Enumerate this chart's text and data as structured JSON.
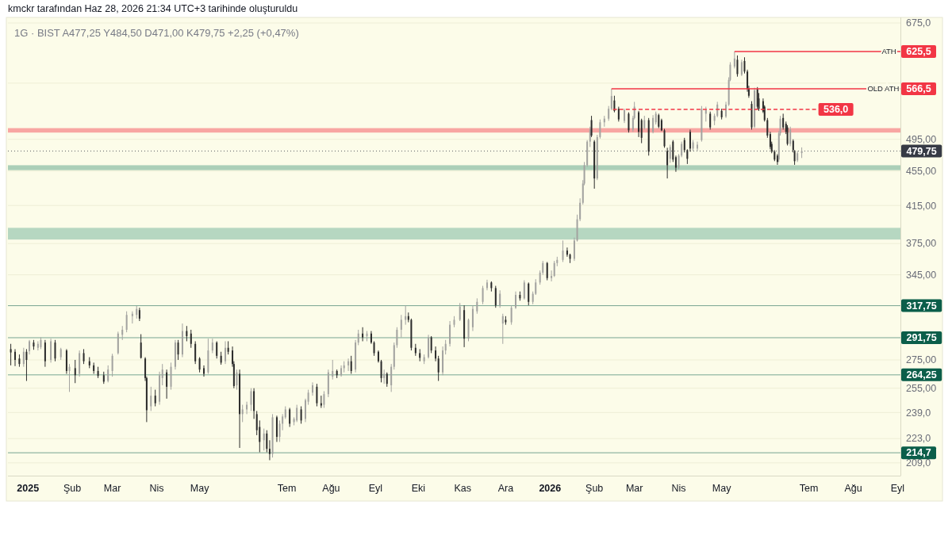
{
  "chart_data": {
    "type": "candlestick",
    "title": "1G · BIST A477,25 Y484,50 D471,00 K479,75 +2,25 (+0,47%)",
    "annotations": [
      "kmckr tarafından Haz 28, 2026 21:34 UTC+3 tarihinde oluşturuldu",
      {
        "text": "ATH",
        "x": "2026-08-26",
        "y": 625.5
      },
      {
        "text": "OLD ATH",
        "x": "2026-08-22",
        "y": 566.5
      }
    ],
    "x": [
      "2024-12-20",
      "2024-12-23",
      "2024-12-26",
      "2024-12-29",
      "2024-12-31",
      "2025-01-02",
      "2025-01-05",
      "2025-01-08",
      "2025-01-10",
      "2025-01-13",
      "2025-01-17",
      "2025-01-20",
      "2025-01-24",
      "2025-01-28",
      "2025-01-30",
      "2025-02-03",
      "2025-02-06",
      "2025-02-09",
      "2025-02-13",
      "2025-02-16",
      "2025-02-19",
      "2025-02-23",
      "2025-02-26",
      "2025-03-01",
      "2025-03-05",
      "2025-03-08",
      "2025-03-11",
      "2025-03-15",
      "2025-03-18",
      "2025-03-20",
      "2025-03-21",
      "2025-03-24",
      "2025-03-25",
      "2025-03-28",
      "2025-03-31",
      "2025-04-03",
      "2025-04-05",
      "2025-04-08",
      "2025-04-11",
      "2025-04-14",
      "2025-04-16",
      "2025-04-19",
      "2025-04-22",
      "2025-04-25",
      "2025-04-28",
      "2025-05-01",
      "2025-05-04",
      "2025-05-07",
      "2025-05-10",
      "2025-05-13",
      "2025-05-16",
      "2025-05-19",
      "2025-05-21",
      "2025-05-24",
      "2025-05-25",
      "2025-05-27",
      "2025-05-29",
      "2025-05-31",
      "2025-06-03",
      "2025-06-06",
      "2025-06-08",
      "2025-06-10",
      "2025-06-12",
      "2025-06-15",
      "2025-06-17",
      "2025-06-19",
      "2025-06-21",
      "2025-06-24",
      "2025-06-26",
      "2025-06-28",
      "2025-06-30",
      "2025-07-03",
      "2025-07-06",
      "2025-07-08",
      "2025-07-11",
      "2025-07-14",
      "2025-07-16",
      "2025-07-19",
      "2025-07-22",
      "2025-07-25",
      "2025-07-27",
      "2025-07-30",
      "2025-08-02",
      "2025-08-05",
      "2025-08-08",
      "2025-08-10",
      "2025-08-13",
      "2025-08-15",
      "2025-08-18",
      "2025-08-20",
      "2025-08-23",
      "2025-08-26",
      "2025-08-29",
      "2025-08-31",
      "2025-09-03",
      "2025-09-05",
      "2025-09-07",
      "2025-09-09",
      "2025-09-12",
      "2025-09-14",
      "2025-09-16",
      "2025-09-19",
      "2025-09-22",
      "2025-09-24",
      "2025-09-26",
      "2025-09-29",
      "2025-10-02",
      "2025-10-05",
      "2025-10-08",
      "2025-10-10",
      "2025-10-13",
      "2025-10-15",
      "2025-10-18",
      "2025-10-20",
      "2025-10-23",
      "2025-10-26",
      "2025-10-30",
      "2025-11-02",
      "2025-11-05",
      "2025-11-08",
      "2025-11-11",
      "2025-11-15",
      "2025-11-18",
      "2025-11-21",
      "2025-11-24",
      "2025-11-27",
      "2025-11-29",
      "2025-12-01",
      "2025-12-05",
      "2025-12-08",
      "2025-12-11",
      "2025-12-14",
      "2025-12-17",
      "2025-12-20",
      "2025-12-22",
      "2025-12-25",
      "2025-12-27",
      "2025-12-30",
      "2026-01-02",
      "2026-01-04",
      "2026-01-06",
      "2026-01-10",
      "2026-01-13",
      "2026-01-15",
      "2026-01-18",
      "2026-01-20",
      "2026-01-22",
      "2026-01-24",
      "2026-01-25",
      "2026-01-27",
      "2026-01-29",
      "2026-01-30",
      "2026-02-01",
      "2026-02-03",
      "2026-02-05",
      "2026-02-08",
      "2026-02-11",
      "2026-02-13",
      "2026-02-15",
      "2026-02-18",
      "2026-02-22",
      "2026-02-25",
      "2026-02-28",
      "2026-03-01",
      "2026-03-04",
      "2026-03-06",
      "2026-03-08",
      "2026-03-11",
      "2026-03-14",
      "2026-03-16",
      "2026-03-18",
      "2026-03-20",
      "2026-03-22",
      "2026-03-24",
      "2026-03-26",
      "2026-03-28",
      "2026-03-30",
      "2026-04-01",
      "2026-04-03",
      "2026-04-05",
      "2026-04-07",
      "2026-04-09",
      "2026-04-11",
      "2026-04-14",
      "2026-04-17",
      "2026-04-20",
      "2026-04-23",
      "2026-04-26",
      "2026-04-28",
      "2026-05-01",
      "2026-05-04",
      "2026-05-06",
      "2026-05-07",
      "2026-05-10",
      "2026-05-12",
      "2026-05-15",
      "2026-05-17",
      "2026-05-19",
      "2026-05-20",
      "2026-05-22",
      "2026-05-24",
      "2026-05-26",
      "2026-05-27",
      "2026-05-30",
      "2026-05-31",
      "2026-06-02",
      "2026-06-04",
      "2026-06-05",
      "2026-06-07",
      "2026-06-09",
      "2026-06-10",
      "2026-06-11",
      "2026-06-13",
      "2026-06-15",
      "2026-06-16",
      "2026-06-18",
      "2026-06-20",
      "2026-06-21",
      "2026-06-23",
      "2026-06-26"
    ],
    "ohlc": [
      [
        283,
        287,
        271,
        280.5
      ],
      [
        281,
        283,
        270.5,
        275
      ],
      [
        276,
        279,
        270,
        272
      ],
      [
        272,
        284,
        270,
        281
      ],
      [
        281,
        283,
        260,
        275
      ],
      [
        281.5,
        290,
        279,
        289
      ],
      [
        288,
        290,
        282.5,
        285
      ],
      [
        284,
        289,
        282,
        287
      ],
      [
        284.5,
        292,
        283,
        290
      ],
      [
        288,
        290,
        270,
        274
      ],
      [
        275,
        291,
        273,
        289
      ],
      [
        288,
        290,
        274,
        276
      ],
      [
        277,
        284,
        275,
        283
      ],
      [
        282,
        283,
        265,
        267
      ],
      [
        267,
        272,
        252.5,
        270
      ],
      [
        269,
        275,
        258.5,
        264
      ],
      [
        265,
        282,
        263,
        280
      ],
      [
        280,
        283,
        272,
        274
      ],
      [
        274,
        277,
        269,
        271
      ],
      [
        271,
        273,
        265,
        267
      ],
      [
        267,
        270,
        262,
        263.5
      ],
      [
        264,
        266.5,
        258,
        259.5
      ],
      [
        260,
        271,
        259,
        268
      ],
      [
        267,
        279.5,
        263,
        278
      ],
      [
        280,
        296.5,
        279,
        295
      ],
      [
        294,
        301,
        290,
        298
      ],
      [
        298,
        313,
        296,
        310
      ],
      [
        309,
        313,
        303,
        311
      ],
      [
        310,
        317.5,
        307,
        315
      ],
      [
        314,
        316,
        305,
        307
      ],
      [
        288,
        294.5,
        276,
        276.5
      ],
      [
        276,
        277,
        260,
        262
      ],
      [
        262,
        263,
        233,
        240.5
      ],
      [
        243,
        256,
        240,
        250
      ],
      [
        250,
        254,
        243,
        245
      ],
      [
        246,
        266.5,
        244,
        264
      ],
      [
        262,
        272,
        257,
        268
      ],
      [
        266,
        268,
        248,
        256
      ],
      [
        256,
        273,
        254,
        270
      ],
      [
        270,
        290,
        268,
        288
      ],
      [
        288,
        290,
        275,
        279
      ],
      [
        279,
        303,
        277,
        297
      ],
      [
        297,
        301,
        289,
        293
      ],
      [
        295,
        298,
        284,
        287
      ],
      [
        287,
        289,
        272,
        274
      ],
      [
        276,
        277,
        266,
        268
      ],
      [
        269,
        271,
        263,
        265
      ],
      [
        266,
        291,
        265,
        282
      ],
      [
        282,
        291,
        280,
        288
      ],
      [
        288,
        289,
        276,
        278
      ],
      [
        278,
        281,
        271.5,
        273
      ],
      [
        274,
        289,
        272,
        284
      ],
      [
        284,
        289,
        279,
        281
      ],
      [
        282,
        285,
        270,
        272
      ],
      [
        272,
        274,
        255,
        256.5
      ],
      [
        257,
        268,
        254,
        266
      ],
      [
        265,
        268,
        217.5,
        238
      ],
      [
        238,
        244,
        233,
        241
      ],
      [
        241,
        246,
        238,
        244
      ],
      [
        244,
        255,
        240,
        253
      ],
      [
        253,
        255,
        235,
        240
      ],
      [
        238,
        240,
        225,
        228
      ],
      [
        230,
        234,
        215,
        221
      ],
      [
        222,
        229,
        216,
        226
      ],
      [
        226,
        228,
        215,
        217
      ],
      [
        217,
        222,
        210.5,
        214
      ],
      [
        214,
        238,
        212,
        236
      ],
      [
        236,
        237,
        221,
        224
      ],
      [
        224,
        234,
        221,
        232
      ],
      [
        232,
        238,
        228,
        236.5
      ],
      [
        236,
        243,
        235,
        241
      ],
      [
        241,
        242,
        230,
        232
      ],
      [
        233,
        236,
        231,
        235
      ],
      [
        234,
        244,
        233,
        242
      ],
      [
        241,
        243,
        232,
        234
      ],
      [
        235,
        248,
        233,
        247
      ],
      [
        246,
        254,
        244,
        252
      ],
      [
        252,
        259,
        250,
        257
      ],
      [
        256,
        258,
        243,
        245
      ],
      [
        245,
        250,
        242,
        243.5
      ],
      [
        244,
        253,
        242,
        251
      ],
      [
        251,
        268,
        249,
        266
      ],
      [
        263,
        275,
        261,
        267
      ],
      [
        267,
        268,
        262,
        264
      ],
      [
        264,
        271,
        263,
        269
      ],
      [
        269,
        274,
        266,
        271
      ],
      [
        271,
        276,
        267,
        274
      ],
      [
        274,
        278,
        265,
        267
      ],
      [
        268,
        290,
        266,
        288
      ],
      [
        288,
        298,
        286,
        295
      ],
      [
        295,
        300,
        289,
        292
      ],
      [
        293,
        297,
        289,
        295
      ],
      [
        295,
        297,
        287,
        288
      ],
      [
        288,
        289,
        278,
        280
      ],
      [
        281,
        282,
        273,
        274
      ],
      [
        274,
        275,
        259,
        262
      ],
      [
        262,
        268,
        258,
        265
      ],
      [
        265,
        266,
        256,
        258
      ],
      [
        257,
        272,
        252.5,
        270
      ],
      [
        270,
        288,
        268,
        286
      ],
      [
        286,
        300,
        284,
        298
      ],
      [
        298,
        310,
        292,
        306
      ],
      [
        306,
        318,
        302,
        309
      ],
      [
        309,
        312,
        304,
        306
      ],
      [
        306,
        307,
        282,
        284
      ],
      [
        284,
        287,
        278,
        280
      ],
      [
        280,
        283,
        274,
        276.5
      ],
      [
        274,
        279,
        272,
        277
      ],
      [
        277,
        294,
        276,
        292
      ],
      [
        292,
        293,
        280,
        282
      ],
      [
        282,
        285,
        274,
        276
      ],
      [
        276,
        278,
        260,
        266
      ],
      [
        266,
        285,
        264,
        282
      ],
      [
        282,
        290,
        279,
        287
      ],
      [
        287,
        305,
        285,
        302
      ],
      [
        302,
        309,
        300,
        306
      ],
      [
        306,
        320,
        305,
        317
      ],
      [
        314,
        318,
        284.5,
        291
      ],
      [
        291,
        307,
        289,
        306
      ],
      [
        300,
        318,
        297,
        315
      ],
      [
        313,
        324,
        311,
        321
      ],
      [
        321,
        335,
        319,
        333
      ],
      [
        333,
        340.5,
        331,
        338
      ],
      [
        338,
        339,
        330,
        333
      ],
      [
        333,
        335,
        316,
        318
      ],
      [
        318,
        331,
        316,
        328
      ],
      [
        303,
        311,
        287,
        309
      ],
      [
        306,
        309,
        302,
        304
      ],
      [
        304,
        318,
        302,
        316
      ],
      [
        316,
        330,
        315,
        327
      ],
      [
        327,
        330,
        322,
        324
      ],
      [
        324,
        340,
        323,
        338
      ],
      [
        337,
        338,
        318,
        321
      ],
      [
        321,
        330,
        319,
        328
      ],
      [
        328,
        341,
        327,
        338
      ],
      [
        338,
        349,
        336,
        347
      ],
      [
        347,
        358,
        345,
        356
      ],
      [
        356,
        357,
        340,
        342
      ],
      [
        342,
        349,
        339,
        344
      ],
      [
        344,
        358,
        343,
        356
      ],
      [
        356,
        362,
        353,
        359
      ],
      [
        359,
        378,
        357,
        368
      ],
      [
        368,
        371,
        362,
        364
      ],
      [
        364,
        365,
        356,
        360
      ],
      [
        360,
        381,
        358,
        378
      ],
      [
        378,
        405,
        377,
        400
      ],
      [
        400,
        423,
        398,
        418
      ],
      [
        418,
        444,
        416,
        440
      ],
      [
        440,
        466,
        438,
        462
      ],
      [
        462,
        494,
        460,
        492
      ],
      [
        492,
        512,
        485,
        508
      ],
      [
        521,
        527,
        498,
        500
      ],
      [
        492,
        494,
        434,
        446
      ],
      [
        446,
        501,
        444,
        498
      ],
      [
        498,
        522,
        496,
        518
      ],
      [
        518,
        527,
        512,
        523
      ],
      [
        523,
        541,
        520,
        537
      ],
      [
        537,
        566.5,
        535,
        555.5
      ],
      [
        549,
        556,
        532,
        534
      ],
      [
        537,
        540,
        519,
        522
      ],
      [
        520,
        537,
        517,
        535
      ],
      [
        530,
        532,
        504,
        507
      ],
      [
        508,
        527,
        505,
        524
      ],
      [
        524,
        547,
        522,
        540
      ],
      [
        532,
        534,
        498,
        505
      ],
      [
        521,
        523,
        490,
        497
      ],
      [
        510,
        527,
        508,
        521
      ],
      [
        521,
        524,
        474,
        479
      ],
      [
        505,
        528,
        503,
        524
      ],
      [
        518,
        533,
        515,
        530
      ],
      [
        528,
        530,
        510,
        512
      ],
      [
        521,
        523,
        506,
        507
      ],
      [
        507,
        509,
        484,
        486
      ],
      [
        480,
        484,
        446,
        462
      ],
      [
        470,
        488,
        465,
        485
      ],
      [
        492,
        494,
        466,
        469
      ],
      [
        472,
        474,
        454,
        459
      ],
      [
        459,
        476,
        457,
        474
      ],
      [
        474,
        492,
        472,
        489
      ],
      [
        494,
        497,
        478,
        481
      ],
      [
        481,
        482,
        463.5,
        470
      ],
      [
        505,
        508,
        479,
        483
      ],
      [
        483,
        494,
        480,
        491
      ],
      [
        483,
        492,
        480,
        488
      ],
      [
        494,
        541,
        492,
        537
      ],
      [
        530,
        540,
        519,
        535
      ],
      [
        530,
        533,
        508,
        511
      ],
      [
        520,
        530,
        514,
        527
      ],
      [
        527,
        547,
        525,
        543
      ],
      [
        534,
        537,
        522,
        525
      ],
      [
        526,
        547,
        524,
        543
      ],
      [
        543,
        584,
        541,
        580
      ],
      [
        580,
        608,
        578,
        604
      ],
      [
        601,
        625.5,
        598,
        614
      ],
      [
        612,
        619,
        585,
        589
      ],
      [
        588,
        612,
        586,
        608
      ],
      [
        610,
        616,
        590,
        593
      ],
      [
        593,
        596,
        562,
        566
      ],
      [
        567,
        571,
        553,
        556
      ],
      [
        544,
        548,
        508,
        511
      ],
      [
        512,
        568,
        510,
        564
      ],
      [
        566,
        569,
        536,
        540
      ],
      [
        552,
        560,
        534,
        537
      ],
      [
        548,
        552,
        531,
        533
      ],
      [
        540,
        542,
        519,
        521
      ],
      [
        521,
        524,
        497,
        500
      ],
      [
        502,
        505,
        482,
        485
      ],
      [
        489,
        492,
        477,
        479
      ],
      [
        479,
        481,
        467,
        469
      ],
      [
        474,
        476,
        462.5,
        466
      ],
      [
        469,
        506,
        466,
        503
      ],
      [
        503,
        527,
        500,
        523
      ],
      [
        524,
        530,
        508,
        511
      ],
      [
        516,
        519,
        502,
        505
      ],
      [
        511,
        514,
        487,
        489
      ],
      [
        489,
        512,
        486,
        508
      ],
      [
        493,
        495,
        478,
        481
      ],
      [
        479,
        481,
        462.5,
        467
      ],
      [
        468,
        480,
        466,
        477
      ],
      [
        477.25,
        484.5,
        471,
        479.75
      ]
    ],
    "colors": [
      "#2b2b2b",
      "#2b2b2b",
      "#2b2b2b",
      "#a3a3a0",
      "#2b2b2b",
      "#a3a3a0",
      "#2b2b2b",
      "#a3a3a0",
      "#a3a3a0",
      "#2b2b2b",
      "#a3a3a0",
      "#2b2b2b",
      "#a3a3a0",
      "#2b2b2b",
      "#a3a3a0",
      "#2b2b2b",
      "#a3a3a0",
      "#2b2b2b",
      "#2b2b2b",
      "#2b2b2b",
      "#2b2b2b",
      "#2b2b2b",
      "#a3a3a0",
      "#a3a3a0",
      "#a3a3a0",
      "#a3a3a0",
      "#a3a3a0",
      "#a3a3a0",
      "#a3a3a0",
      "#2b2b2b",
      "#2b2b2b",
      "#2b2b2b",
      "#2b2b2b",
      "#a3a3a0",
      "#2b2b2b",
      "#a3a3a0",
      "#a3a3a0",
      "#2b2b2b",
      "#a3a3a0",
      "#a3a3a0",
      "#2b2b2b",
      "#a3a3a0",
      "#2b2b2b",
      "#2b2b2b",
      "#2b2b2b",
      "#2b2b2b",
      "#2b2b2b",
      "#a3a3a0",
      "#a3a3a0",
      "#2b2b2b",
      "#2b2b2b",
      "#a3a3a0",
      "#2b2b2b",
      "#2b2b2b",
      "#2b2b2b",
      "#a3a3a0",
      "#2b2b2b",
      "#a3a3a0",
      "#a3a3a0",
      "#a3a3a0",
      "#2b2b2b",
      "#2b2b2b",
      "#2b2b2b",
      "#a3a3a0",
      "#2b2b2b",
      "#2b2b2b",
      "#a3a3a0",
      "#2b2b2b",
      "#a3a3a0",
      "#a3a3a0",
      "#a3a3a0",
      "#2b2b2b",
      "#a3a3a0",
      "#a3a3a0",
      "#2b2b2b",
      "#a3a3a0",
      "#a3a3a0",
      "#a3a3a0",
      "#2b2b2b",
      "#2b2b2b",
      "#a3a3a0",
      "#a3a3a0",
      "#a3a3a0",
      "#2b2b2b",
      "#a3a3a0",
      "#a3a3a0",
      "#a3a3a0",
      "#2b2b2b",
      "#a3a3a0",
      "#a3a3a0",
      "#2b2b2b",
      "#a3a3a0",
      "#2b2b2b",
      "#2b2b2b",
      "#2b2b2b",
      "#2b2b2b",
      "#a3a3a0",
      "#2b2b2b",
      "#a3a3a0",
      "#a3a3a0",
      "#a3a3a0",
      "#a3a3a0",
      "#a3a3a0",
      "#2b2b2b",
      "#2b2b2b",
      "#2b2b2b",
      "#2b2b2b",
      "#a3a3a0",
      "#a3a3a0",
      "#2b2b2b",
      "#2b2b2b",
      "#2b2b2b",
      "#a3a3a0",
      "#a3a3a0",
      "#a3a3a0",
      "#a3a3a0",
      "#a3a3a0",
      "#2b2b2b",
      "#a3a3a0",
      "#a3a3a0",
      "#a3a3a0",
      "#a3a3a0",
      "#a3a3a0",
      "#2b2b2b",
      "#2b2b2b",
      "#a3a3a0",
      "#a3a3a0",
      "#2b2b2b",
      "#a3a3a0",
      "#a3a3a0",
      "#2b2b2b",
      "#a3a3a0",
      "#2b2b2b",
      "#a3a3a0",
      "#a3a3a0",
      "#a3a3a0",
      "#a3a3a0",
      "#2b2b2b",
      "#a3a3a0",
      "#a3a3a0",
      "#a3a3a0",
      "#a3a3a0",
      "#2b2b2b",
      "#2b2b2b",
      "#a3a3a0",
      "#a3a3a0",
      "#a3a3a0",
      "#a3a3a0",
      "#a3a3a0",
      "#a3a3a0",
      "#a3a3a0",
      "#2b2b2b",
      "#2b2b2b",
      "#a3a3a0",
      "#a3a3a0",
      "#a3a3a0",
      "#a3a3a0",
      "#a3a3a0",
      "#2b2b2b",
      "#2b2b2b",
      "#a3a3a0",
      "#2b2b2b",
      "#a3a3a0",
      "#a3a3a0",
      "#2b2b2b",
      "#2b2b2b",
      "#a3a3a0",
      "#2b2b2b",
      "#a3a3a0",
      "#a3a3a0",
      "#2b2b2b",
      "#2b2b2b",
      "#2b2b2b",
      "#2b2b2b",
      "#a3a3a0",
      "#2b2b2b",
      "#2b2b2b",
      "#a3a3a0",
      "#a3a3a0",
      "#2b2b2b",
      "#2b2b2b",
      "#2b2b2b",
      "#a3a3a0",
      "#a3a3a0",
      "#a3a3a0",
      "#a3a3a0",
      "#2b2b2b",
      "#a3a3a0",
      "#a3a3a0",
      "#2b2b2b",
      "#a3a3a0",
      "#a3a3a0",
      "#a3a3a0",
      "#a3a3a0",
      "#2b2b2b",
      "#a3a3a0",
      "#2b2b2b",
      "#2b2b2b",
      "#2b2b2b",
      "#2b2b2b",
      "#a3a3a0",
      "#2b2b2b",
      "#2b2b2b",
      "#2b2b2b",
      "#2b2b2b",
      "#2b2b2b",
      "#2b2b2b",
      "#2b2b2b",
      "#2b2b2b",
      "#2b2b2b",
      "#a3a3a0",
      "#a3a3a0",
      "#2b2b2b",
      "#2b2b2b",
      "#2b2b2b",
      "#a3a3a0",
      "#2b2b2b",
      "#2b2b2b",
      "#a3a3a0",
      "#a3a3a0"
    ],
    "series": [
      {
        "type": "line",
        "x": [
          "2026-05-10",
          "2026-09-03"
        ],
        "values": [
          625.5,
          625.5
        ],
        "color": "#f23645",
        "value_labels": [
          null,
          "625,5"
        ]
      },
      {
        "type": "line",
        "x": [
          "2026-02-13",
          "2026-09-03"
        ],
        "values": [
          566.5,
          566.5
        ],
        "color": "#f23645",
        "value_labels": [
          null,
          "566,5"
        ]
      },
      {
        "type": "line",
        "x": [
          "2026-02-14",
          "2026-07-06"
        ],
        "values": [
          536,
          536
        ],
        "color": "#f23645",
        "line_style": "dashed",
        "value_labels": [
          null,
          "536,0"
        ]
      }
    ],
    "ref_lines": [
      {
        "axis": "y",
        "value": 479.75,
        "label": "479,75",
        "color": "#363a45",
        "line_style": "dotted"
      },
      {
        "axis": "y",
        "value": 317.75,
        "label": "317,75",
        "color": "#0b5e4a"
      },
      {
        "axis": "y",
        "value": 291.75,
        "label": "291,75",
        "color": "#0b5e4a"
      },
      {
        "axis": "y",
        "value": 264.25,
        "label": "264,25",
        "color": "#0b5e4a"
      },
      {
        "axis": "y",
        "value": 214.7,
        "label": "214,7",
        "color": "#0b5e4a"
      }
    ],
    "bands": [
      {
        "axis": "y",
        "from": 504,
        "to": 510,
        "color": "#f8a6a2"
      },
      {
        "axis": "y",
        "from": 456,
        "to": 462,
        "color": "#abcfb8"
      },
      {
        "axis": "y",
        "from": 379,
        "to": 391,
        "color": "#b6d7c1"
      }
    ],
    "xlim": [
      "2024-12-18",
      "2026-09-03"
    ],
    "xticks": [
      {
        "value": "2025-01-01",
        "label": "2025"
      },
      {
        "value": "2025-02-01",
        "label": "Şub"
      },
      {
        "value": "2025-03-01",
        "label": "Mar"
      },
      {
        "value": "2025-04-01",
        "label": "Nis"
      },
      {
        "value": "2025-05-01",
        "label": "May"
      },
      {
        "value": "2025-07-01",
        "label": "Tem"
      },
      {
        "value": "2025-08-01",
        "label": "Ağu"
      },
      {
        "value": "2025-09-01",
        "label": "Eyl"
      },
      {
        "value": "2025-10-01",
        "label": "Eki"
      },
      {
        "value": "2025-11-01",
        "label": "Kas"
      },
      {
        "value": "2025-12-01",
        "label": "Ara"
      },
      {
        "value": "2026-01-01",
        "label": "2026"
      },
      {
        "value": "2026-02-01",
        "label": "Şub"
      },
      {
        "value": "2026-03-01",
        "label": "Mar"
      },
      {
        "value": "2026-04-01",
        "label": "Nis"
      },
      {
        "value": "2026-05-01",
        "label": "May"
      },
      {
        "value": "2026-07-01",
        "label": "Tem"
      },
      {
        "value": "2026-08-01",
        "label": "Ağu"
      },
      {
        "value": "2026-09-01",
        "label": "Eyl"
      }
    ],
    "ylim": [
      202,
      685
    ],
    "yticks": [
      {
        "value": 675,
        "label": "675,0"
      },
      {
        "value": 575,
        "label": null
      },
      {
        "value": 495,
        "label": "495,00"
      },
      {
        "value": 455,
        "label": "455,00"
      },
      {
        "value": 415,
        "label": "415,00"
      },
      {
        "value": 375,
        "label": "375,00"
      },
      {
        "value": 345,
        "label": "345,00"
      },
      {
        "value": 275,
        "label": "275,00"
      },
      {
        "value": 255,
        "label": "255,00"
      },
      {
        "value": 239,
        "label": "239,0"
      },
      {
        "value": 223,
        "label": "223,0"
      },
      {
        "value": 209,
        "label": "209,0"
      }
    ],
    "log": true,
    "grid": "y"
  }
}
